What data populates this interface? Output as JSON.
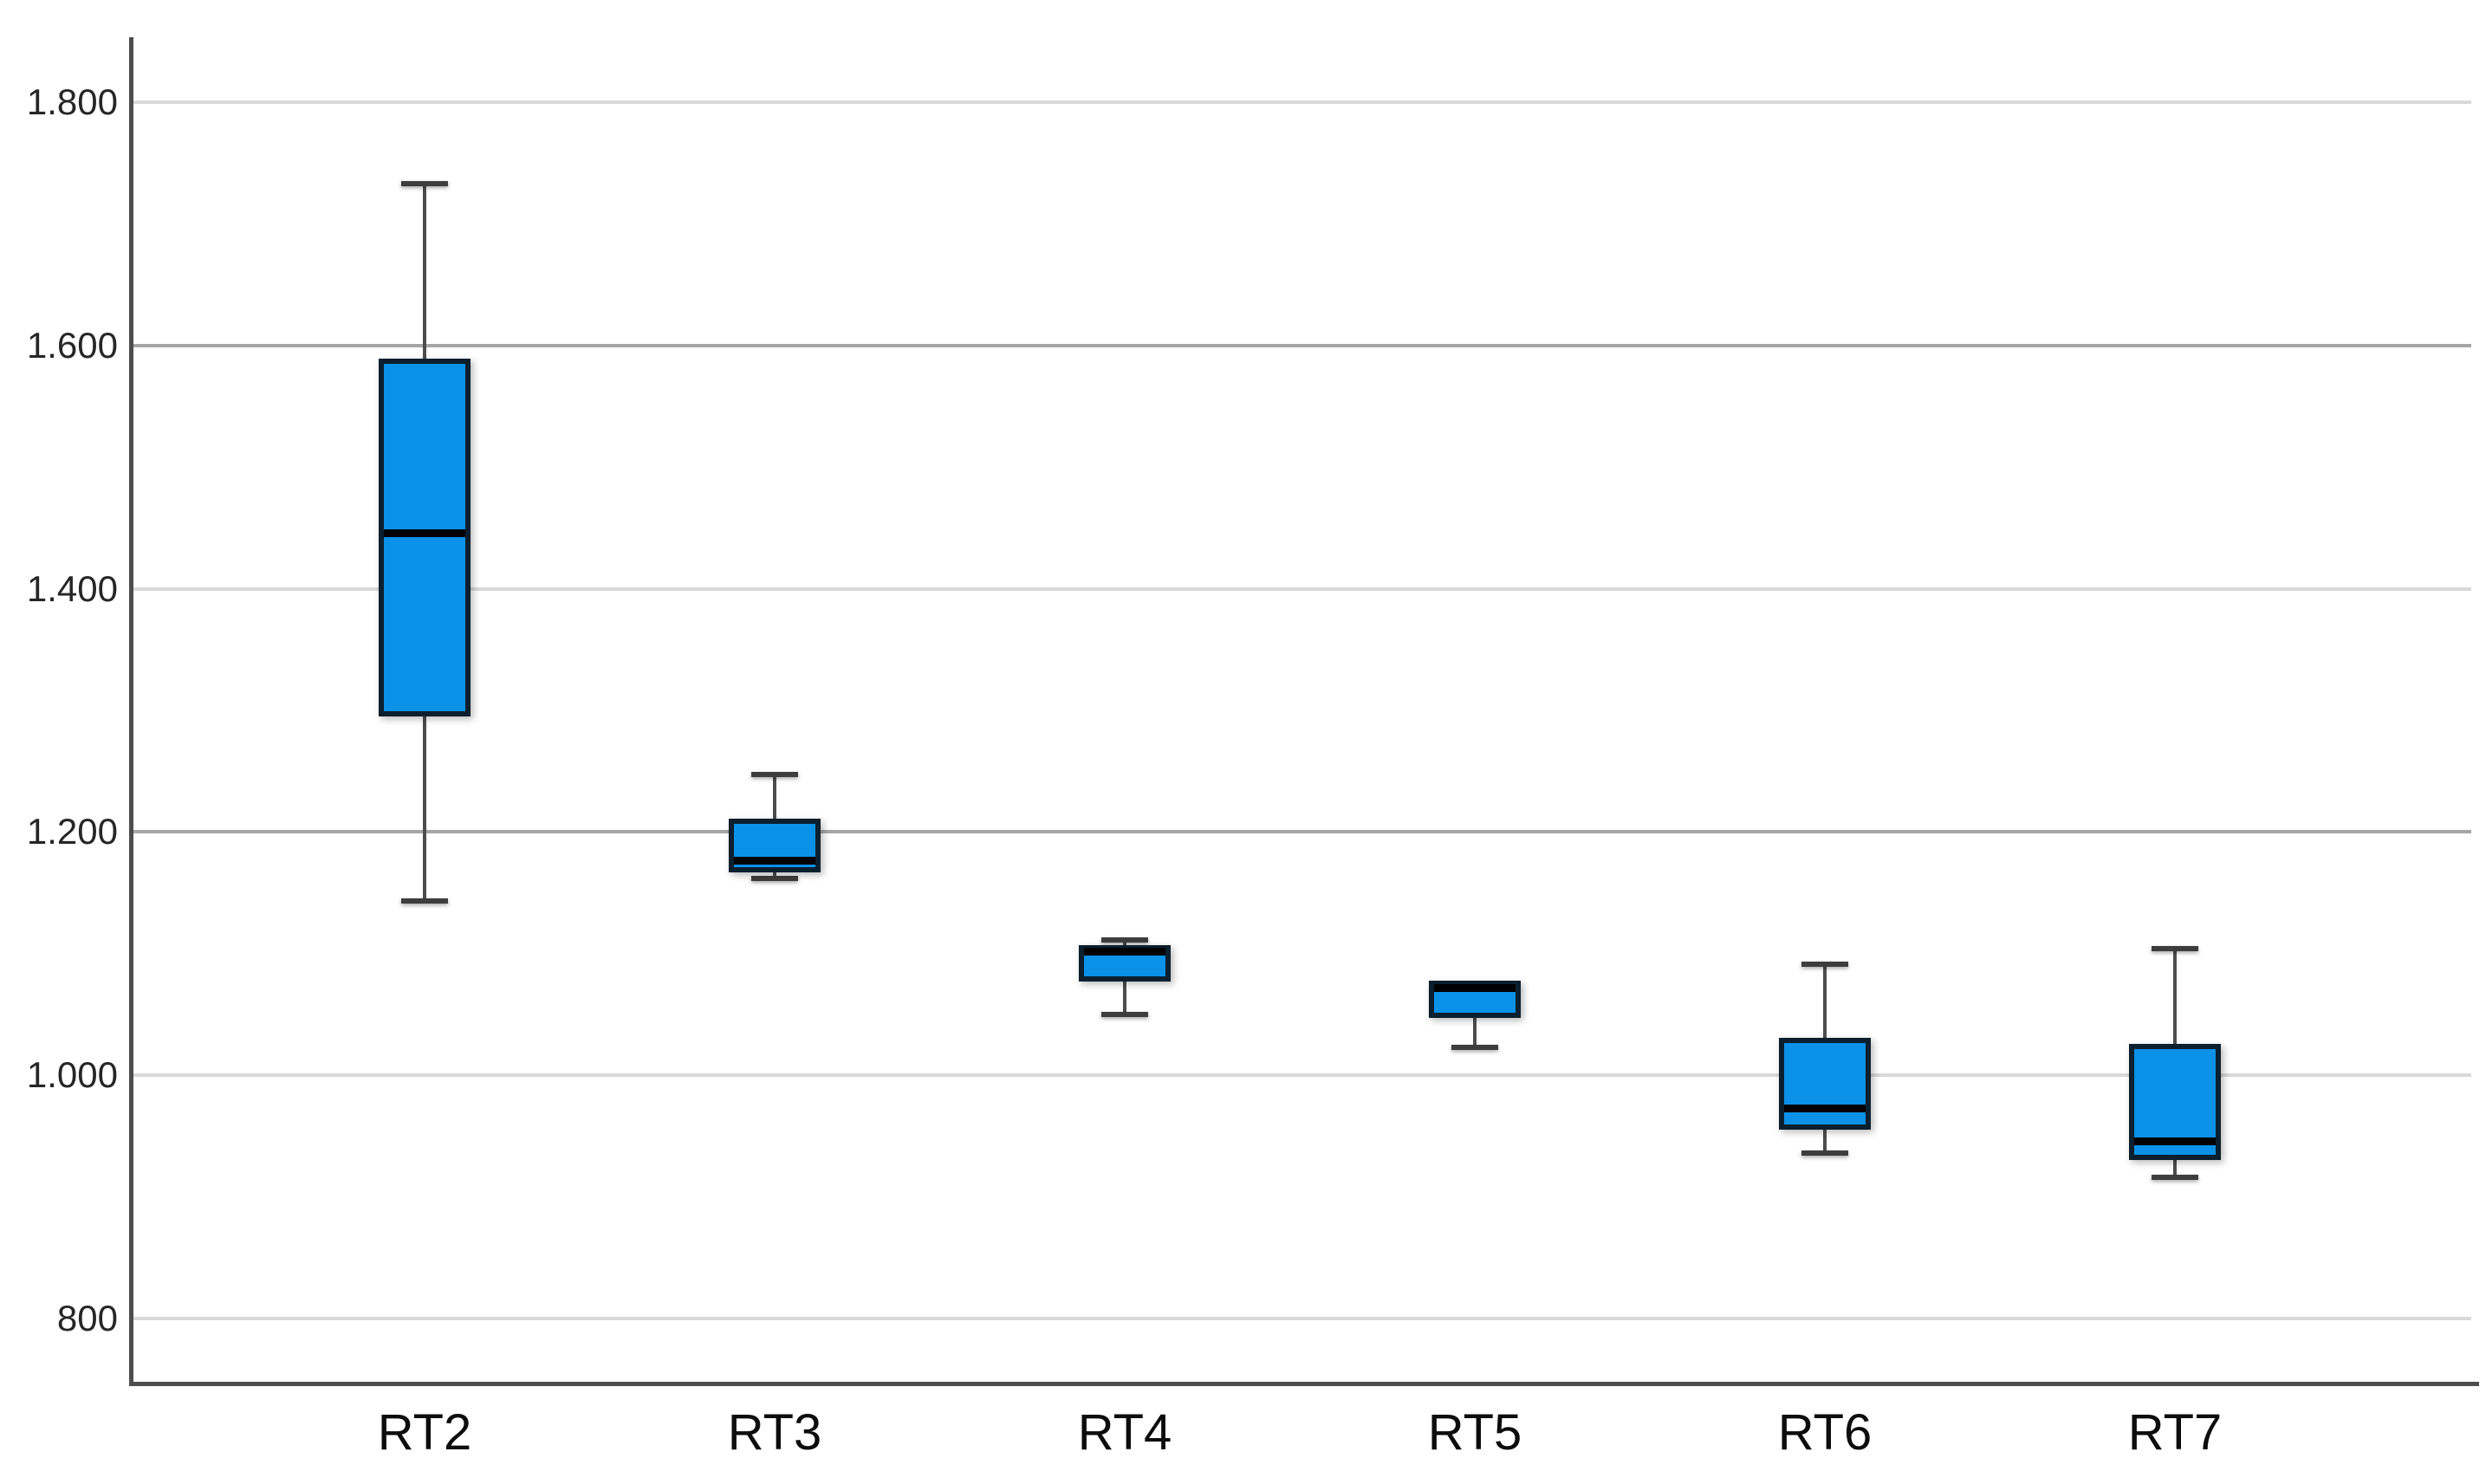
{
  "chart_data": {
    "type": "box",
    "title": "",
    "categories": [
      "RT2",
      "RT3",
      "RT4",
      "RT5",
      "RT6",
      "RT7"
    ],
    "series": [
      {
        "name": "RT2",
        "min": 1143,
        "q1": 1295,
        "median": 1446,
        "q3": 1589,
        "max": 1733
      },
      {
        "name": "RT3",
        "min": 1162,
        "q1": 1167,
        "median": 1177,
        "q3": 1211,
        "max": 1247
      },
      {
        "name": "RT4",
        "min": 1050,
        "q1": 1077,
        "median": 1102,
        "q3": 1107,
        "max": 1111
      },
      {
        "name": "RT5",
        "min": 1023,
        "q1": 1047,
        "median": 1072,
        "q3": 1078,
        "max": 1078
      },
      {
        "name": "RT6",
        "min": 936,
        "q1": 955,
        "median": 973,
        "q3": 1031,
        "max": 1091
      },
      {
        "name": "RT7",
        "min": 916,
        "q1": 930,
        "median": 946,
        "q3": 1026,
        "max": 1104
      }
    ],
    "y_axis": {
      "min": 800,
      "max": 1800,
      "ticks": [
        {
          "value": 800,
          "label": "800",
          "grid": "light"
        },
        {
          "value": 1000,
          "label": "1.000",
          "grid": "light"
        },
        {
          "value": 1200,
          "label": "1.200",
          "grid": "dark"
        },
        {
          "value": 1400,
          "label": "1.400",
          "grid": "light"
        },
        {
          "value": 1600,
          "label": "1.600",
          "grid": "dark"
        },
        {
          "value": 1800,
          "label": "1.800",
          "grid": "light"
        }
      ]
    },
    "x_axis": {
      "labels": [
        "RT2",
        "RT3",
        "RT4",
        "RT5",
        "RT6",
        "RT7"
      ]
    },
    "legend": null,
    "grid": true
  },
  "colors": {
    "box_fill": "#0b91e8",
    "box_border": "#0c1f2e",
    "median": "#000000",
    "whisker": "#4d4d4d",
    "whisker_cap": "#3d3d3d",
    "grid_light": "#d9d9d9",
    "grid_dark": "#a6a6a6",
    "axis": "#4d4d4d",
    "y_label_color": "#262626",
    "x_label_color": "#0d0d0d",
    "background": "#ffffff"
  }
}
